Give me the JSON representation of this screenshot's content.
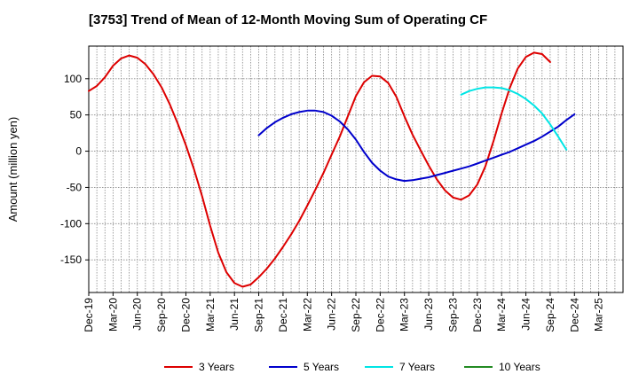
{
  "chart_data": {
    "type": "line",
    "title": "[3753]  Trend of Mean of 12-Month Moving Sum of Operating CF",
    "xlabel": "",
    "ylabel": "Amount (million yen)",
    "ylim": [
      -195,
      145
    ],
    "yticks": [
      100,
      50,
      0,
      -50,
      -100,
      -150
    ],
    "ytick_labels": [
      "100",
      "50",
      "0",
      "-50",
      "-100",
      "-150"
    ],
    "x_range_months": [
      0,
      66
    ],
    "xtick_labels": [
      "Dec-19",
      "Mar-20",
      "Jun-20",
      "Sep-20",
      "Dec-20",
      "Mar-21",
      "Jun-21",
      "Sep-21",
      "Dec-21",
      "Mar-22",
      "Jun-22",
      "Sep-22",
      "Dec-22",
      "Mar-23",
      "Jun-23",
      "Sep-23",
      "Dec-23",
      "Mar-24",
      "Jun-24",
      "Sep-24",
      "Dec-24",
      "Mar-25"
    ],
    "xtick_months": [
      0,
      3,
      6,
      9,
      12,
      15,
      18,
      21,
      24,
      27,
      30,
      33,
      36,
      39,
      42,
      45,
      48,
      51,
      54,
      57,
      60,
      63
    ],
    "grid": true,
    "legend_position": "bottom",
    "series": [
      {
        "name": "3 Years",
        "color": "#dd0000",
        "start_month": 0,
        "values": [
          83,
          90,
          102,
          118,
          128,
          132,
          129,
          120,
          106,
          88,
          65,
          38,
          8,
          -25,
          -62,
          -103,
          -140,
          -167,
          -182,
          -187,
          -184,
          -174,
          -162,
          -148,
          -132,
          -115,
          -96,
          -75,
          -53,
          -30,
          -5,
          20,
          48,
          76,
          95,
          104,
          103,
          94,
          75,
          48,
          23,
          1,
          -20,
          -39,
          -54,
          -64,
          -67,
          -61,
          -46,
          -21,
          14,
          52,
          87,
          114,
          130,
          136,
          134,
          123
        ]
      },
      {
        "name": "5 Years",
        "color": "#0000cc",
        "start_month": 21,
        "values": [
          22,
          32,
          40,
          46,
          51,
          54,
          56,
          56,
          54,
          49,
          41,
          30,
          16,
          -1,
          -16,
          -27,
          -35,
          -39,
          -41,
          -40,
          -38,
          -36,
          -33,
          -30,
          -27,
          -24,
          -21,
          -17,
          -13,
          -9,
          -5,
          -1,
          4,
          9,
          14,
          20,
          27,
          34,
          43,
          51
        ]
      },
      {
        "name": "7 Years",
        "color": "#00e5e5",
        "start_month": 46,
        "values": [
          78,
          83,
          86,
          88,
          88,
          87,
          84,
          79,
          72,
          63,
          52,
          37,
          20,
          2
        ]
      },
      {
        "name": "10 Years",
        "color": "#228b22",
        "start_month": 0,
        "values": []
      }
    ]
  }
}
